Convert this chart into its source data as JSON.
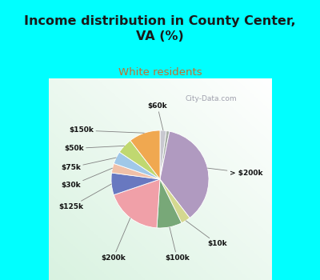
{
  "title": "Income distribution in County Center,\nVA (%)",
  "subtitle": "White residents",
  "title_color": "#1a1a1a",
  "subtitle_color": "#c07030",
  "background_top": "#00ffff",
  "slice_labels": [
    "$60k",
    "",
    "> $200k",
    "$10k",
    "$100k",
    "$200k",
    "$125k",
    "$30k",
    "$75k",
    "$50k",
    "$150k"
  ],
  "slice_values": [
    2,
    1,
    35,
    3,
    8,
    18,
    7,
    3,
    4,
    5,
    10
  ],
  "slice_colors": [
    "#c8c8d0",
    "#a8b0a8",
    "#b09ac0",
    "#d4d890",
    "#78a878",
    "#f0a0a8",
    "#6878c0",
    "#f0c0a8",
    "#a0c8e8",
    "#c0d870",
    "#f0a850"
  ],
  "label_items": [
    [
      0,
      "$60k",
      -0.05,
      1.38
    ],
    [
      2,
      "> $200k",
      1.62,
      0.12
    ],
    [
      3,
      "$10k",
      1.08,
      -1.22
    ],
    [
      4,
      "$100k",
      0.32,
      -1.48
    ],
    [
      5,
      "$200k",
      -0.88,
      -1.48
    ],
    [
      6,
      "$125k",
      -1.68,
      -0.52
    ],
    [
      7,
      "$30k",
      -1.68,
      -0.12
    ],
    [
      8,
      "$75k",
      -1.68,
      0.22
    ],
    [
      9,
      "$50k",
      -1.62,
      0.58
    ],
    [
      10,
      "$150k",
      -1.48,
      0.92
    ]
  ],
  "watermark": "City-Data.com"
}
